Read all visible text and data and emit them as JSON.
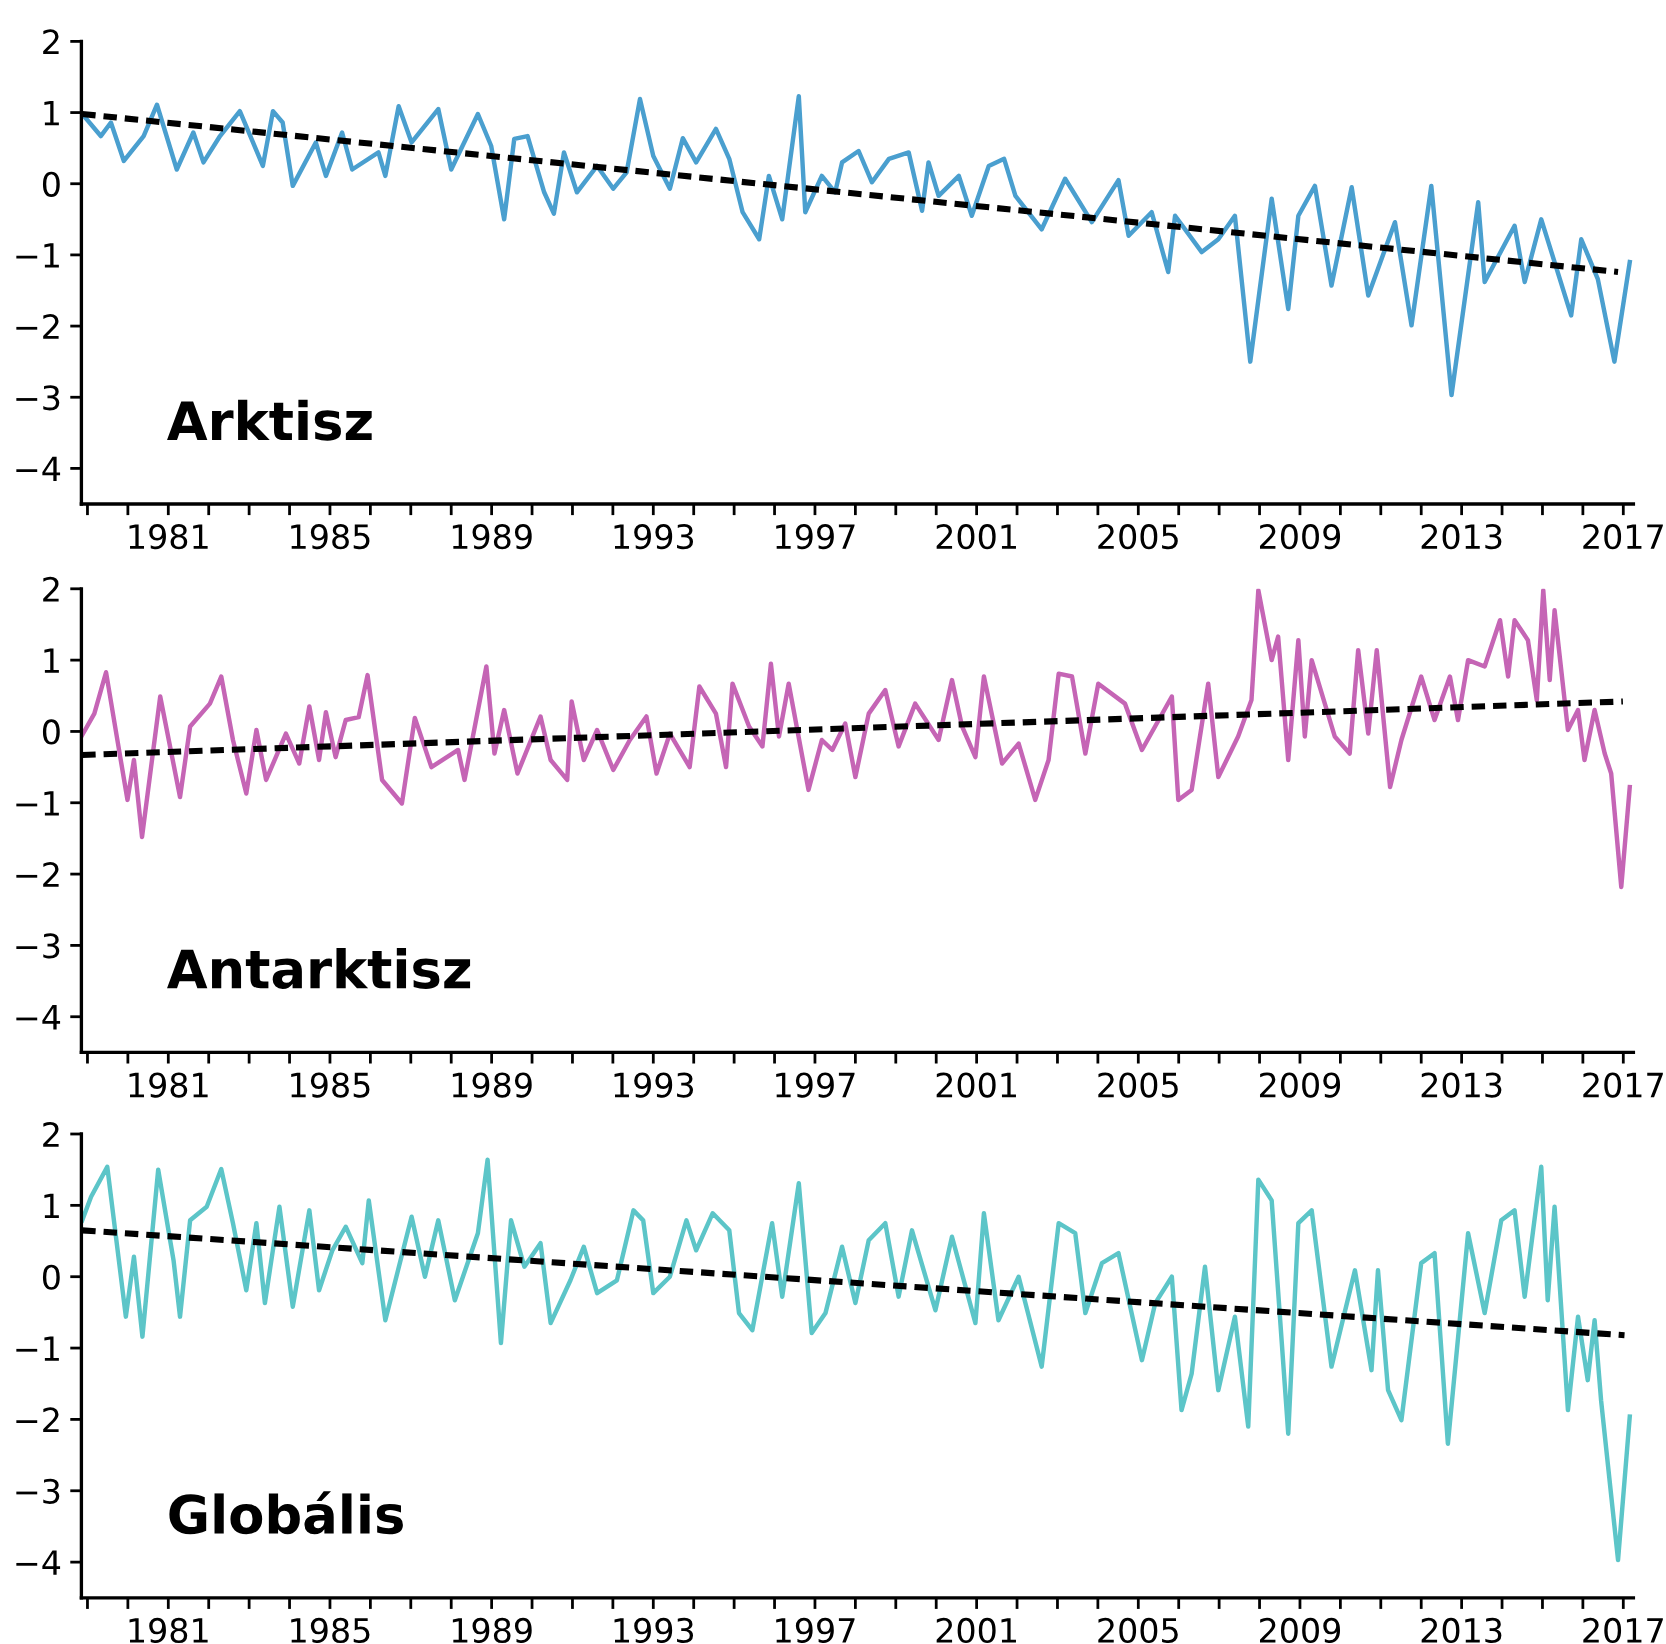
{
  "chart_data": [
    {
      "type": "line",
      "annotations": [
        "Arktisz"
      ],
      "xlim": [
        1978.85,
        2017.25
      ],
      "ylim": [
        -4.5,
        2
      ],
      "yticks": [
        2,
        1,
        0,
        {
          "value": -1,
          "label": "−1"
        },
        {
          "value": -2,
          "label": "−2"
        },
        {
          "value": -3,
          "label": "−3"
        },
        {
          "value": -4,
          "label": "−4"
        }
      ],
      "xticks": [
        {
          "value": 1979,
          "label": null
        },
        {
          "value": 1980,
          "label": null
        },
        1981,
        {
          "value": 1982,
          "label": null
        },
        {
          "value": 1983,
          "label": null
        },
        {
          "value": 1984,
          "label": null
        },
        1985,
        {
          "value": 1986,
          "label": null
        },
        {
          "value": 1987,
          "label": null
        },
        {
          "value": 1988,
          "label": null
        },
        1989,
        {
          "value": 1990,
          "label": null
        },
        {
          "value": 1991,
          "label": null
        },
        {
          "value": 1992,
          "label": null
        },
        1993,
        {
          "value": 1994,
          "label": null
        },
        {
          "value": 1995,
          "label": null
        },
        {
          "value": 1996,
          "label": null
        },
        1997,
        {
          "value": 1998,
          "label": null
        },
        {
          "value": 1999,
          "label": null
        },
        {
          "value": 2000,
          "label": null
        },
        2001,
        {
          "value": 2002,
          "label": null
        },
        {
          "value": 2003,
          "label": null
        },
        {
          "value": 2004,
          "label": null
        },
        2005,
        {
          "value": 2006,
          "label": null
        },
        {
          "value": 2007,
          "label": null
        },
        {
          "value": 2008,
          "label": null
        },
        2009,
        {
          "value": 2010,
          "label": null
        },
        {
          "value": 2011,
          "label": null
        },
        {
          "value": 2012,
          "label": null
        },
        2013,
        {
          "value": 2014,
          "label": null
        },
        {
          "value": 2015,
          "label": null
        },
        {
          "value": 2016,
          "label": null
        },
        2017
      ],
      "marker": "none",
      "series": [
        {
          "color": "#4a9fcf",
          "line_style": "solid",
          "x": [
            1978.87,
            1979.33,
            1979.58,
            1979.9,
            1980.39,
            1980.72,
            1981.21,
            1981.62,
            1981.87,
            1982.28,
            1982.77,
            1983.34,
            1983.59,
            1983.83,
            1984.08,
            1984.65,
            1984.9,
            1985.3,
            1985.55,
            1986.2,
            1986.37,
            1986.7,
            1987.02,
            1987.68,
            1988.0,
            1988.66,
            1988.99,
            1989.31,
            1989.56,
            1989.89,
            1990.3,
            1990.54,
            1990.79,
            1991.11,
            1991.61,
            1992.01,
            1992.34,
            1992.67,
            1993.0,
            1993.41,
            1993.73,
            1994.06,
            1994.55,
            1994.88,
            1995.21,
            1995.62,
            1995.86,
            1996.19,
            1996.6,
            1996.76,
            1997.17,
            1997.5,
            1997.67,
            1998.08,
            1998.41,
            1998.83,
            1999.32,
            1999.65,
            1999.81,
            2000.06,
            2000.56,
            2000.88,
            2001.3,
            2001.68,
            2001.96,
            2002.61,
            2003.19,
            2003.85,
            2004.51,
            2004.76,
            2005.33,
            2005.74,
            2005.91,
            2006.57,
            2006.98,
            2007.39,
            2007.77,
            2008.3,
            2008.71,
            2008.96,
            2009.37,
            2009.78,
            2010.28,
            2010.69,
            2011.35,
            2011.76,
            2012.25,
            2012.75,
            2013.41,
            2013.57,
            2014.31,
            2014.56,
            2014.97,
            2015.71,
            2015.96,
            2016.37,
            2016.78,
            2017.16
          ],
          "values": [
            0.98,
            0.67,
            0.86,
            0.32,
            0.67,
            1.11,
            0.2,
            0.72,
            0.3,
            0.67,
            1.02,
            0.25,
            1.02,
            0.86,
            -0.03,
            0.58,
            0.11,
            0.72,
            0.2,
            0.44,
            0.11,
            1.09,
            0.58,
            1.05,
            0.2,
            0.98,
            0.53,
            -0.5,
            0.63,
            0.67,
            -0.12,
            -0.42,
            0.44,
            -0.12,
            0.25,
            -0.07,
            0.16,
            1.19,
            0.39,
            -0.07,
            0.64,
            0.3,
            0.77,
            0.35,
            -0.4,
            -0.78,
            0.11,
            -0.5,
            1.23,
            -0.4,
            0.11,
            -0.12,
            0.3,
            0.46,
            0.02,
            0.35,
            0.44,
            -0.38,
            0.3,
            -0.17,
            0.11,
            -0.45,
            0.25,
            0.35,
            -0.17,
            -0.64,
            0.07,
            -0.54,
            0.05,
            -0.73,
            -0.4,
            -1.24,
            -0.45,
            -0.96,
            -0.78,
            -0.45,
            -2.5,
            -0.21,
            -1.76,
            -0.45,
            -0.03,
            -1.43,
            -0.05,
            -1.57,
            -0.54,
            -1.99,
            -0.03,
            -2.97,
            -0.26,
            -1.38,
            -0.59,
            -1.38,
            -0.5,
            -1.85,
            -0.78,
            -1.34,
            -2.5,
            -1.1
          ]
        },
        {
          "type": "line",
          "color": "#000000",
          "line_style": "dashed",
          "x": [
            1978.87,
            2016.87
          ],
          "values": [
            0.98,
            -1.24
          ]
        }
      ]
    },
    {
      "type": "line",
      "annotations": [
        "Antarktisz"
      ],
      "xlim": [
        1978.85,
        2017.25
      ],
      "ylim": [
        -4.5,
        2
      ],
      "yticks": [
        2,
        1,
        0,
        {
          "value": -1,
          "label": "−1"
        },
        {
          "value": -2,
          "label": "−2"
        },
        {
          "value": -3,
          "label": "−3"
        },
        {
          "value": -4,
          "label": "−4"
        }
      ],
      "xticks": [
        {
          "value": 1979,
          "label": null
        },
        {
          "value": 1980,
          "label": null
        },
        1981,
        {
          "value": 1982,
          "label": null
        },
        {
          "value": 1983,
          "label": null
        },
        {
          "value": 1984,
          "label": null
        },
        1985,
        {
          "value": 1986,
          "label": null
        },
        {
          "value": 1987,
          "label": null
        },
        {
          "value": 1988,
          "label": null
        },
        1989,
        {
          "value": 1990,
          "label": null
        },
        {
          "value": 1991,
          "label": null
        },
        {
          "value": 1992,
          "label": null
        },
        1993,
        {
          "value": 1994,
          "label": null
        },
        {
          "value": 1995,
          "label": null
        },
        {
          "value": 1996,
          "label": null
        },
        1997,
        {
          "value": 1998,
          "label": null
        },
        {
          "value": 1999,
          "label": null
        },
        {
          "value": 2000,
          "label": null
        },
        2001,
        {
          "value": 2002,
          "label": null
        },
        {
          "value": 2003,
          "label": null
        },
        {
          "value": 2004,
          "label": null
        },
        2005,
        {
          "value": 2006,
          "label": null
        },
        {
          "value": 2007,
          "label": null
        },
        {
          "value": 2008,
          "label": null
        },
        2009,
        {
          "value": 2010,
          "label": null
        },
        {
          "value": 2011,
          "label": null
        },
        {
          "value": 2012,
          "label": null
        },
        2013,
        {
          "value": 2014,
          "label": null
        },
        {
          "value": 2015,
          "label": null
        },
        {
          "value": 2016,
          "label": null
        },
        2017
      ],
      "marker": "none",
      "series": [
        {
          "color": "#c565b5",
          "line_style": "solid",
          "x": [
            1978.87,
            1979.17,
            1979.46,
            1979.74,
            1979.99,
            1980.15,
            1980.35,
            1980.8,
            1981.29,
            1981.54,
            1982.03,
            1982.31,
            1982.6,
            1982.93,
            1983.18,
            1983.42,
            1983.91,
            1984.24,
            1984.49,
            1984.73,
            1984.9,
            1985.14,
            1985.39,
            1985.71,
            1985.93,
            1986.29,
            1986.78,
            1987.1,
            1987.51,
            1988.17,
            1988.33,
            1988.87,
            1989.07,
            1989.31,
            1989.64,
            1990.21,
            1990.46,
            1990.87,
            1990.98,
            1991.28,
            1991.61,
            1992.01,
            1992.42,
            1992.83,
            1993.08,
            1993.41,
            1993.9,
            1994.14,
            1994.55,
            1994.8,
            1994.96,
            1995.37,
            1995.7,
            1995.91,
            1996.11,
            1996.35,
            1996.84,
            1997.17,
            1997.43,
            1997.75,
            1998.0,
            1998.33,
            1998.74,
            1999.07,
            1999.48,
            2000.06,
            2000.39,
            2000.64,
            2000.97,
            2001.18,
            2001.63,
            2002.04,
            2002.45,
            2002.78,
            2003.03,
            2003.36,
            2003.69,
            2004.01,
            2004.67,
            2005.09,
            2005.83,
            2005.99,
            2006.32,
            2006.73,
            2006.98,
            2007.47,
            2007.8,
            2007.97,
            2008.3,
            2008.46,
            2008.71,
            2008.96,
            2009.12,
            2009.29,
            2009.86,
            2010.23,
            2010.44,
            2010.69,
            2010.9,
            2011.23,
            2011.51,
            2012.0,
            2012.33,
            2012.71,
            2012.91,
            2013.16,
            2013.57,
            2013.95,
            2014.15,
            2014.31,
            2014.64,
            2014.86,
            2015.02,
            2015.18,
            2015.3,
            2015.63,
            2015.88,
            2016.04,
            2016.29,
            2016.54,
            2016.7,
            2016.95,
            2017.16
          ],
          "values": [
            -0.05,
            0.25,
            0.83,
            -0.12,
            -0.96,
            -0.4,
            -1.48,
            0.49,
            -0.92,
            0.07,
            0.39,
            0.77,
            -0.12,
            -0.87,
            0.02,
            -0.68,
            -0.03,
            -0.45,
            0.35,
            -0.4,
            0.27,
            -0.36,
            0.16,
            0.2,
            0.79,
            -0.68,
            -1.01,
            0.19,
            -0.5,
            -0.26,
            -0.68,
            0.91,
            -0.31,
            0.3,
            -0.59,
            0.21,
            -0.4,
            -0.68,
            0.42,
            -0.4,
            0.02,
            -0.54,
            -0.12,
            0.21,
            -0.59,
            -0.03,
            -0.5,
            0.63,
            0.25,
            -0.5,
            0.67,
            0.07,
            -0.21,
            0.95,
            -0.07,
            0.67,
            -0.82,
            -0.12,
            -0.26,
            0.11,
            -0.64,
            0.25,
            0.58,
            -0.21,
            0.39,
            -0.12,
            0.72,
            0.07,
            -0.36,
            0.77,
            -0.45,
            -0.17,
            -0.96,
            -0.4,
            0.81,
            0.77,
            -0.31,
            0.67,
            0.39,
            -0.26,
            0.49,
            -0.96,
            -0.82,
            0.67,
            -0.64,
            -0.07,
            0.44,
            1.98,
            1.0,
            1.33,
            -0.4,
            1.28,
            -0.07,
            1.0,
            -0.07,
            -0.31,
            1.14,
            -0.03,
            1.14,
            -0.78,
            -0.12,
            0.77,
            0.16,
            0.77,
            0.16,
            1.0,
            0.91,
            1.56,
            0.77,
            1.56,
            1.28,
            0.44,
            1.98,
            0.72,
            1.7,
            0.02,
            0.3,
            -0.4,
            0.3,
            -0.31,
            -0.59,
            -2.18,
            -0.78
          ]
        },
        {
          "type": "line",
          "color": "#000000",
          "line_style": "dashed",
          "x": [
            1978.87,
            2016.99
          ],
          "values": [
            -0.33,
            0.42
          ]
        }
      ]
    },
    {
      "type": "line",
      "annotations": [
        "Globális"
      ],
      "xlim": [
        1978.85,
        2017.25
      ],
      "ylim": [
        -4.5,
        2
      ],
      "yticks": [
        2,
        1,
        0,
        {
          "value": -1,
          "label": "−1"
        },
        {
          "value": -2,
          "label": "−2"
        },
        {
          "value": -3,
          "label": "−3"
        },
        {
          "value": -4,
          "label": "−4"
        }
      ],
      "xticks": [
        {
          "value": 1979,
          "label": null
        },
        {
          "value": 1980,
          "label": null
        },
        1981,
        {
          "value": 1982,
          "label": null
        },
        {
          "value": 1983,
          "label": null
        },
        {
          "value": 1984,
          "label": null
        },
        1985,
        {
          "value": 1986,
          "label": null
        },
        {
          "value": 1987,
          "label": null
        },
        {
          "value": 1988,
          "label": null
        },
        1989,
        {
          "value": 1990,
          "label": null
        },
        {
          "value": 1991,
          "label": null
        },
        {
          "value": 1992,
          "label": null
        },
        1993,
        {
          "value": 1994,
          "label": null
        },
        {
          "value": 1995,
          "label": null
        },
        {
          "value": 1996,
          "label": null
        },
        1997,
        {
          "value": 1998,
          "label": null
        },
        {
          "value": 1999,
          "label": null
        },
        {
          "value": 2000,
          "label": null
        },
        2001,
        {
          "value": 2002,
          "label": null
        },
        {
          "value": 2003,
          "label": null
        },
        {
          "value": 2004,
          "label": null
        },
        2005,
        {
          "value": 2006,
          "label": null
        },
        {
          "value": 2007,
          "label": null
        },
        {
          "value": 2008,
          "label": null
        },
        2009,
        {
          "value": 2010,
          "label": null
        },
        {
          "value": 2011,
          "label": null
        },
        {
          "value": 2012,
          "label": null
        },
        2013,
        {
          "value": 2014,
          "label": null
        },
        {
          "value": 2015,
          "label": null
        },
        {
          "value": 2016,
          "label": null
        },
        2017
      ],
      "marker": "none",
      "series": [
        {
          "color": "#5cc5c8",
          "line_style": "solid",
          "x": [
            1978.87,
            1979.09,
            1979.49,
            1979.95,
            1980.15,
            1980.36,
            1980.75,
            1981.13,
            1981.29,
            1981.54,
            1981.95,
            1982.31,
            1982.6,
            1982.93,
            1983.18,
            1983.39,
            1983.75,
            1984.08,
            1984.49,
            1984.73,
            1985.06,
            1985.39,
            1985.8,
            1985.96,
            1986.37,
            1987.02,
            1987.35,
            1987.68,
            1988.09,
            1988.66,
            1988.9,
            1989.23,
            1989.48,
            1989.81,
            1990.21,
            1990.46,
            1990.95,
            1991.28,
            1991.61,
            1992.1,
            1992.51,
            1992.75,
            1993.0,
            1993.41,
            1993.82,
            1994.06,
            1994.47,
            1994.88,
            1995.12,
            1995.45,
            1995.94,
            1996.19,
            1996.6,
            1996.92,
            1997.26,
            1997.67,
            1998.0,
            1998.33,
            1998.74,
            1999.07,
            1999.4,
            1999.98,
            2000.39,
            2000.97,
            2001.18,
            2001.54,
            2002.04,
            2002.61,
            2003.03,
            2003.44,
            2003.69,
            2004.1,
            2004.51,
            2005.09,
            2005.42,
            2005.83,
            2006.07,
            2006.32,
            2006.65,
            2006.98,
            2007.39,
            2007.72,
            2007.97,
            2008.3,
            2008.71,
            2008.96,
            2009.29,
            2009.78,
            2010.36,
            2010.77,
            2010.93,
            2011.18,
            2011.51,
            2012.0,
            2012.33,
            2012.66,
            2013.16,
            2013.57,
            2013.98,
            2014.31,
            2014.56,
            2014.97,
            2015.13,
            2015.3,
            2015.63,
            2015.88,
            2016.12,
            2016.29,
            2016.45,
            2016.87,
            2017.16
          ],
          "values": [
            0.79,
            1.12,
            1.54,
            -0.56,
            0.28,
            -0.84,
            1.5,
            0.23,
            -0.56,
            0.79,
            0.98,
            1.51,
            0.75,
            -0.19,
            0.75,
            -0.37,
            0.98,
            -0.42,
            0.93,
            -0.19,
            0.37,
            0.7,
            0.19,
            1.07,
            -0.61,
            0.84,
            0.0,
            0.79,
            -0.33,
            0.61,
            1.64,
            -0.93,
            0.79,
            0.14,
            0.47,
            -0.65,
            -0.05,
            0.42,
            -0.23,
            -0.05,
            0.93,
            0.79,
            -0.23,
            0.0,
            0.79,
            0.37,
            0.89,
            0.65,
            -0.51,
            -0.75,
            0.75,
            -0.28,
            1.31,
            -0.79,
            -0.51,
            0.42,
            -0.37,
            0.51,
            0.75,
            -0.28,
            0.65,
            -0.47,
            0.56,
            -0.65,
            0.89,
            -0.61,
            0.0,
            -1.26,
            0.75,
            0.61,
            -0.51,
            0.19,
            0.33,
            -1.17,
            -0.37,
            0.0,
            -1.87,
            -1.36,
            0.14,
            -1.59,
            -0.56,
            -2.1,
            1.36,
            1.07,
            -2.2,
            0.75,
            0.93,
            -1.26,
            0.09,
            -1.31,
            0.09,
            -1.59,
            -2.01,
            0.19,
            0.33,
            -2.34,
            0.61,
            -0.51,
            0.79,
            0.93,
            -0.28,
            1.54,
            -0.33,
            0.98,
            -1.87,
            -0.56,
            -1.45,
            -0.61,
            -1.73,
            -3.97,
            -1.96
          ]
        },
        {
          "type": "line",
          "color": "#000000",
          "line_style": "dashed",
          "x": [
            1978.87,
            2017.03
          ],
          "values": [
            0.65,
            -0.82
          ]
        }
      ]
    }
  ]
}
